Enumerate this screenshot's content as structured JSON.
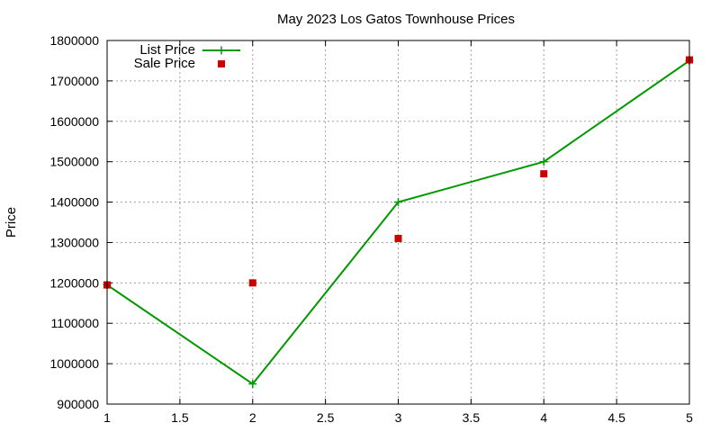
{
  "chart_data": {
    "type": "line",
    "title": "May 2023 Los Gatos Townhouse Prices",
    "xlabel": "",
    "ylabel": "Price",
    "xlim": [
      1,
      5
    ],
    "ylim": [
      900000,
      1800000
    ],
    "x_ticks": [
      1,
      1.5,
      2,
      2.5,
      3,
      3.5,
      4,
      4.5,
      5
    ],
    "x_tick_labels": [
      "1",
      "1.5",
      "2",
      "2.5",
      "3",
      "3.5",
      "4",
      "4.5",
      "5"
    ],
    "y_ticks": [
      900000,
      1000000,
      1100000,
      1200000,
      1300000,
      1400000,
      1500000,
      1600000,
      1700000,
      1800000
    ],
    "y_tick_labels": [
      "900000",
      "1000000",
      "1100000",
      "1200000",
      "1300000",
      "1400000",
      "1500000",
      "1600000",
      "1700000",
      "1800000"
    ],
    "grid": true,
    "legend_position": "top-left",
    "series": [
      {
        "name": "List Price",
        "style": "linespoints",
        "marker": "plus",
        "color": "#009900",
        "x": [
          1,
          2,
          3,
          4,
          5
        ],
        "y": [
          1195000,
          950000,
          1400000,
          1500000,
          1750000
        ]
      },
      {
        "name": "Sale Price",
        "style": "points",
        "marker": "square",
        "color": "#cc0000",
        "x": [
          1,
          2,
          3,
          4,
          5
        ],
        "y": [
          1195000,
          1200000,
          1310000,
          1470000,
          1752000
        ]
      }
    ]
  }
}
